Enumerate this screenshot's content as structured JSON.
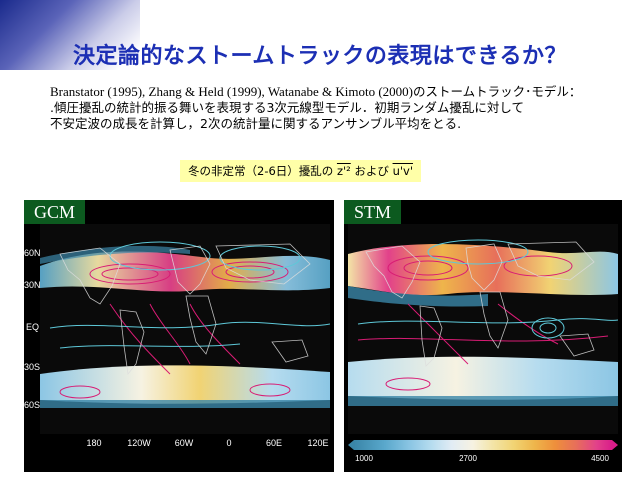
{
  "slide": {
    "title": "決定論的なストームトラックの表現はできるか？",
    "line1_refs": "Branstator (1995), Zhang & Held (1999), Watanabe & Kimoto (2000)",
    "line1_tail": "のストームトラック･モデル：",
    "line2": ".傾圧擾乱の統計的振る舞いを表現する3次元線型モデル．初期ランダム擾乱に対して",
    "line3": "不安定波の成長を計算し，2次の統計量に関するアンサンブル平均をとる.",
    "caption_pre": "冬の非定常（2-6日）擾乱の ",
    "caption_z": "z'²",
    "caption_mid": " および ",
    "caption_uv": "u'v'"
  },
  "panels": {
    "gcm": {
      "label": "GCM",
      "lat_labels": [
        "60N",
        "30N",
        "EQ",
        "30S",
        "60S"
      ],
      "lon_labels": [
        "180",
        "120W",
        "60W",
        "0",
        "60E",
        "120E"
      ]
    },
    "stm": {
      "label": "STM",
      "colorbar": [
        "1000",
        "2700",
        "4500"
      ]
    }
  },
  "colors": {
    "title": "#1c2fb4",
    "label_bg": "#0c5a1f",
    "caption_bg": "#ffffa8",
    "contour_positive": "#d81c74",
    "contour_secondary": "#5ec8d8"
  }
}
